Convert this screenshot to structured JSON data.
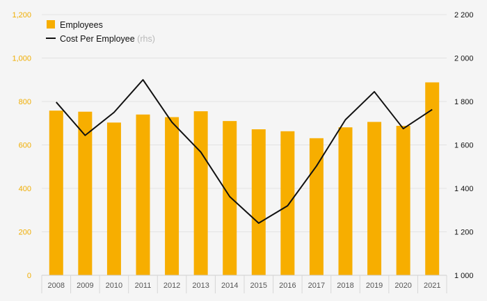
{
  "chart_data": {
    "type": "bar",
    "categories": [
      "2008",
      "2009",
      "2010",
      "2011",
      "2012",
      "2013",
      "2014",
      "2015",
      "2016",
      "2017",
      "2018",
      "2019",
      "2020",
      "2021"
    ],
    "series": [
      {
        "name": "Employees",
        "type": "bar",
        "axis": "left",
        "color": "#f7ae00",
        "values": [
          758,
          753,
          703,
          740,
          728,
          755,
          710,
          672,
          663,
          631,
          681,
          706,
          688,
          888
        ]
      },
      {
        "name": "Cost Per Employee",
        "name_suffix": "(rhs)",
        "type": "line",
        "axis": "right",
        "color": "#111111",
        "values": [
          1797,
          1644,
          1750,
          1900,
          1705,
          1567,
          1362,
          1240,
          1320,
          1503,
          1716,
          1845,
          1675,
          1763
        ]
      }
    ],
    "y_left": {
      "ylim": [
        0,
        1200
      ],
      "ticks": [
        0,
        200,
        400,
        600,
        800,
        1000,
        1200
      ],
      "tick_labels": [
        "0",
        "200",
        "400",
        "600",
        "800",
        "1,000",
        "1,200"
      ]
    },
    "y_right": {
      "ylim": [
        1000,
        2200
      ],
      "ticks": [
        1000,
        1200,
        1400,
        1600,
        1800,
        2000,
        2200
      ],
      "tick_labels": [
        "1 000",
        "1 200",
        "1 400",
        "1 600",
        "1 800",
        "2 000",
        "2 200"
      ]
    },
    "grid": true,
    "legend_position": "top-left",
    "title": "",
    "xlabel": "",
    "ylabel": ""
  }
}
